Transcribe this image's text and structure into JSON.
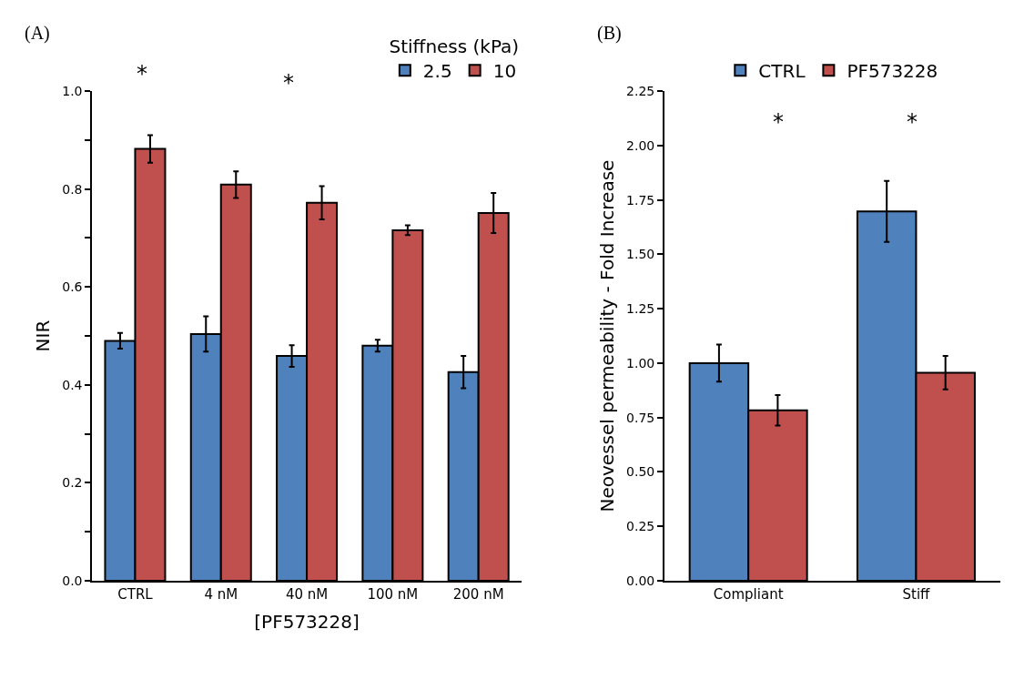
{
  "chart_data": [
    {
      "type": "bar",
      "categories": [
        "CTRL",
        "4 nM",
        "40 nM",
        "100 nM",
        "200 nM"
      ],
      "xlabel": "[PF573228]",
      "ylabel": "NIR",
      "legend_title": "Stiffness (kPa)",
      "legend": "top right",
      "ylim": [
        0,
        1.0
      ],
      "yticks": [
        {
          "value": 0,
          "label": "0.0"
        },
        {
          "value": 0.1,
          "label": null
        },
        {
          "value": 0.2,
          "label": "0.2"
        },
        {
          "value": 0.3,
          "label": null
        },
        {
          "value": 0.4,
          "label": "0.4"
        },
        {
          "value": 0.5,
          "label": null
        },
        {
          "value": 0.6,
          "label": "0.6"
        },
        {
          "value": 0.7,
          "label": null
        },
        {
          "value": 0.8,
          "label": "0.8"
        },
        {
          "value": 0.9,
          "label": null
        },
        {
          "value": 1.0,
          "label": "1.0"
        }
      ],
      "series": [
        {
          "name": "2.5",
          "color": "#4f81bd",
          "values": [
            0.49,
            0.504,
            0.459,
            0.48,
            0.426
          ],
          "errors": [
            0.016,
            0.036,
            0.022,
            0.012,
            0.033
          ]
        },
        {
          "name": "10",
          "color": "#c0504d",
          "values": [
            0.882,
            0.809,
            0.772,
            0.716,
            0.751
          ],
          "errors": [
            0.028,
            0.027,
            0.034,
            0.01,
            0.041
          ]
        }
      ],
      "annotations": [
        "(A)",
        "*",
        "*"
      ]
    },
    {
      "type": "bar",
      "categories": [
        "Compliant",
        "Stiff"
      ],
      "ylabel": "Neovessel permeability - Fold Increase",
      "legend": "top",
      "ylim": [
        0,
        2.25
      ],
      "yticks": [
        {
          "value": 0,
          "label": "0.00"
        },
        {
          "value": 0.25,
          "label": "0.25"
        },
        {
          "value": 0.5,
          "label": "0.50"
        },
        {
          "value": 0.75,
          "label": "0.75"
        },
        {
          "value": 1.0,
          "label": "1.00"
        },
        {
          "value": 1.25,
          "label": "1.25"
        },
        {
          "value": 1.5,
          "label": "1.50"
        },
        {
          "value": 1.75,
          "label": "1.75"
        },
        {
          "value": 2.0,
          "label": "2.00"
        },
        {
          "value": 2.25,
          "label": "2.25"
        }
      ],
      "series": [
        {
          "name": "CTRL",
          "color": "#4f81bd",
          "values": [
            1.0,
            1.697
          ],
          "errors": [
            0.085,
            0.14
          ]
        },
        {
          "name": "PF573228",
          "color": "#c0504d",
          "values": [
            0.783,
            0.956
          ],
          "errors": [
            0.07,
            0.077
          ]
        }
      ],
      "annotations": [
        "(B)",
        "*",
        "*"
      ]
    }
  ]
}
